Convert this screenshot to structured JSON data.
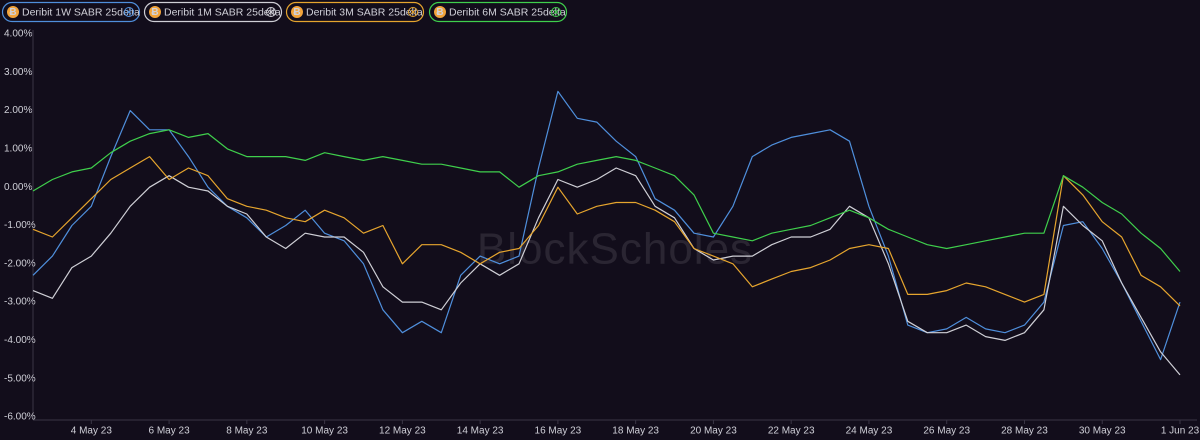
{
  "chart_data": {
    "type": "line",
    "watermark": "BlockScholes",
    "categories": [
      null,
      null,
      null,
      "4 May 23",
      null,
      null,
      null,
      "6 May 23",
      null,
      null,
      null,
      "8 May 23",
      null,
      null,
      null,
      "10 May 23",
      null,
      null,
      null,
      "12 May 23",
      null,
      null,
      null,
      "14 May 23",
      null,
      null,
      null,
      "16 May 23",
      null,
      null,
      null,
      "18 May 23",
      null,
      null,
      null,
      "20 May 23",
      null,
      null,
      null,
      "22 May 23",
      null,
      null,
      null,
      "24 May 23",
      null,
      null,
      null,
      "26 May 23",
      null,
      null,
      null,
      "28 May 23",
      null,
      null,
      null,
      "30 May 23",
      null,
      null,
      null,
      "1 Jun 23"
    ],
    "ylim": [
      -6,
      4
    ],
    "yticks": [
      {
        "value": 4,
        "label": "4.00%"
      },
      {
        "value": 3,
        "label": "3.00%"
      },
      {
        "value": 2,
        "label": "2.00%"
      },
      {
        "value": 1,
        "label": "1.00%"
      },
      {
        "value": 0,
        "label": "0.00%"
      },
      {
        "value": -1,
        "label": "-1.00%"
      },
      {
        "value": -2,
        "label": "-2.00%"
      },
      {
        "value": -3,
        "label": "-3.00%"
      },
      {
        "value": -4,
        "label": "-4.00%"
      },
      {
        "value": -5,
        "label": "-5.00%"
      },
      {
        "value": -6,
        "label": "-6.00%"
      }
    ],
    "series": [
      {
        "name": "Deribit 1W SABR 25delta",
        "color": "#4f8fdc",
        "values": [
          -2.3,
          -1.8,
          -1.0,
          -0.5,
          0.8,
          2.0,
          1.5,
          1.5,
          0.8,
          0.0,
          -0.5,
          -0.8,
          -1.3,
          -1.0,
          -0.6,
          -1.2,
          -1.4,
          -2.0,
          -3.2,
          -3.8,
          -3.5,
          -3.8,
          -2.3,
          -1.8,
          -2.0,
          -1.8,
          0.5,
          2.5,
          1.8,
          1.7,
          1.2,
          0.8,
          -0.3,
          -0.6,
          -1.2,
          -1.3,
          -0.5,
          0.8,
          1.1,
          1.3,
          1.4,
          1.5,
          1.2,
          -0.5,
          -1.8,
          -3.6,
          -3.8,
          -3.7,
          -3.4,
          -3.7,
          -3.8,
          -3.6,
          -3.0,
          -1.0,
          -0.9,
          -1.6,
          -2.5,
          -3.5,
          -4.5,
          -3.0
        ]
      },
      {
        "name": "Deribit 1M SABR 25delta",
        "color": "#cfcfd6",
        "values": [
          -2.7,
          -2.9,
          -2.1,
          -1.8,
          -1.2,
          -0.5,
          0.0,
          0.3,
          0.0,
          -0.1,
          -0.5,
          -0.7,
          -1.3,
          -1.6,
          -1.2,
          -1.3,
          -1.3,
          -1.7,
          -2.6,
          -3.0,
          -3.0,
          -3.2,
          -2.5,
          -2.0,
          -2.3,
          -2.0,
          -0.8,
          0.2,
          0.0,
          0.2,
          0.5,
          0.3,
          -0.5,
          -0.8,
          -1.6,
          -1.9,
          -1.8,
          -1.8,
          -1.5,
          -1.3,
          -1.3,
          -1.1,
          -0.5,
          -0.8,
          -2.0,
          -3.5,
          -3.8,
          -3.8,
          -3.6,
          -3.9,
          -4.0,
          -3.8,
          -3.2,
          -0.5,
          -1.0,
          -1.4,
          -2.5,
          -3.4,
          -4.3,
          -4.9
        ]
      },
      {
        "name": "Deribit 3M SABR 25delta",
        "color": "#e6a52e",
        "values": [
          -1.1,
          -1.3,
          -0.8,
          -0.3,
          0.2,
          0.5,
          0.8,
          0.2,
          0.5,
          0.3,
          -0.3,
          -0.5,
          -0.6,
          -0.8,
          -0.9,
          -0.6,
          -0.8,
          -1.2,
          -1.0,
          -2.0,
          -1.5,
          -1.5,
          -1.7,
          -2.0,
          -1.7,
          -1.6,
          -1.0,
          0.0,
          -0.7,
          -0.5,
          -0.4,
          -0.4,
          -0.6,
          -0.9,
          -1.6,
          -1.8,
          -2.0,
          -2.6,
          -2.4,
          -2.2,
          -2.1,
          -1.9,
          -1.6,
          -1.5,
          -1.6,
          -2.8,
          -2.8,
          -2.7,
          -2.5,
          -2.6,
          -2.8,
          -3.0,
          -2.8,
          0.3,
          -0.2,
          -0.9,
          -1.3,
          -2.3,
          -2.6,
          -3.1
        ]
      },
      {
        "name": "Deribit 6M SABR 25delta",
        "color": "#3fcf4c",
        "values": [
          -0.1,
          0.2,
          0.4,
          0.5,
          0.9,
          1.2,
          1.4,
          1.5,
          1.3,
          1.4,
          1.0,
          0.8,
          0.8,
          0.8,
          0.7,
          0.9,
          0.8,
          0.7,
          0.8,
          0.7,
          0.6,
          0.6,
          0.5,
          0.4,
          0.4,
          0.0,
          0.3,
          0.4,
          0.6,
          0.7,
          0.8,
          0.7,
          0.5,
          0.3,
          -0.2,
          -1.2,
          -1.3,
          -1.4,
          -1.2,
          -1.1,
          -1.0,
          -0.8,
          -0.6,
          -0.8,
          -1.1,
          -1.3,
          -1.5,
          -1.6,
          -1.5,
          -1.4,
          -1.3,
          -1.2,
          -1.2,
          0.3,
          0.0,
          -0.4,
          -0.7,
          -1.2,
          -1.6,
          -2.2
        ]
      }
    ]
  }
}
